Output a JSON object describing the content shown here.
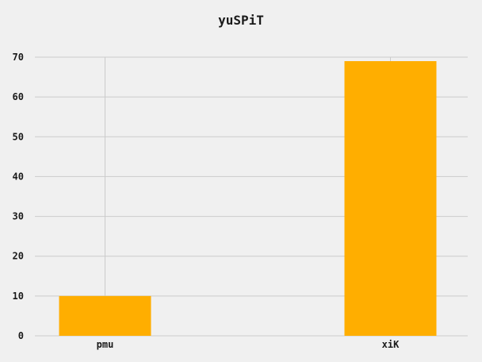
{
  "chart_data": {
    "type": "bar",
    "title": "yuSPiT",
    "categories": [
      "pmu",
      "xiK"
    ],
    "values": [
      10,
      69
    ],
    "ylim": [
      0,
      70
    ],
    "yticks": [
      0,
      10,
      20,
      30,
      40,
      50,
      60,
      70
    ],
    "grid": true,
    "bar_color": "#ffae00",
    "background_color": "#f0f0f0",
    "grid_color": "#cbcbcb"
  }
}
